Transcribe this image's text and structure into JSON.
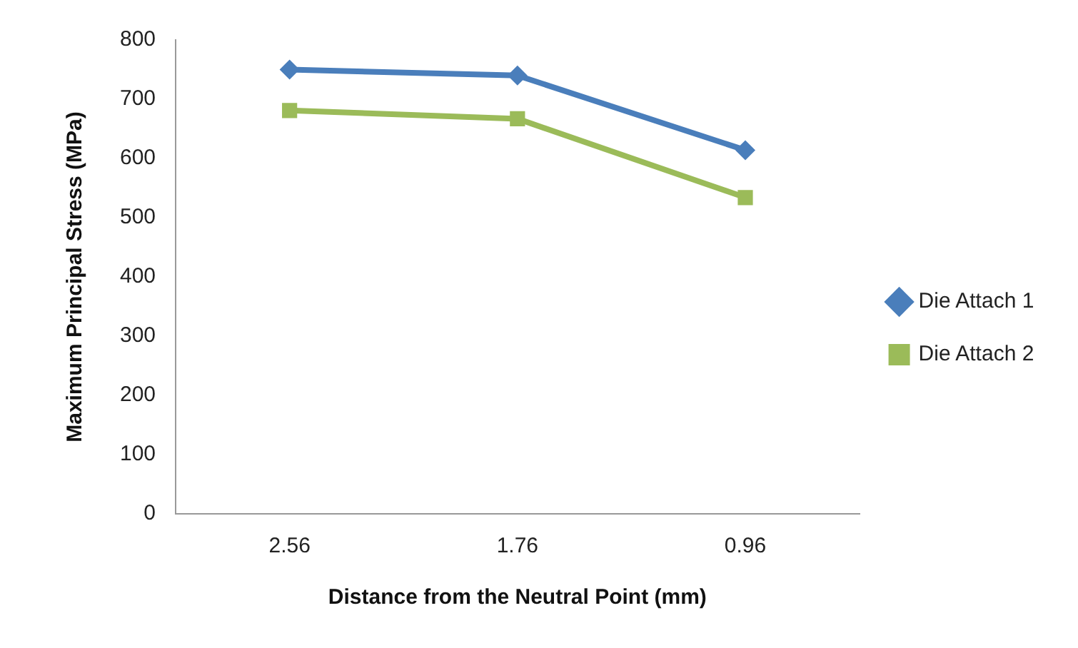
{
  "chart_data": {
    "type": "line",
    "xlabel": "Distance from the Neutral Point (mm)",
    "ylabel": "Maximum Principal Stress (MPa)",
    "categories": [
      "2.56",
      "1.76",
      "0.96"
    ],
    "series": [
      {
        "name": "Die Attach 1",
        "color": "#4a7ebb",
        "values": [
          750,
          740,
          614
        ],
        "marker": "diamond"
      },
      {
        "name": "Die Attach 2",
        "color": "#9bbb59",
        "values": [
          681,
          667,
          534
        ],
        "marker": "square"
      }
    ],
    "ylim": [
      0,
      800
    ],
    "yticks": [
      0,
      100,
      200,
      300,
      400,
      500,
      600,
      700,
      800
    ],
    "grid": false,
    "legend": "right",
    "line_style": "solid"
  }
}
